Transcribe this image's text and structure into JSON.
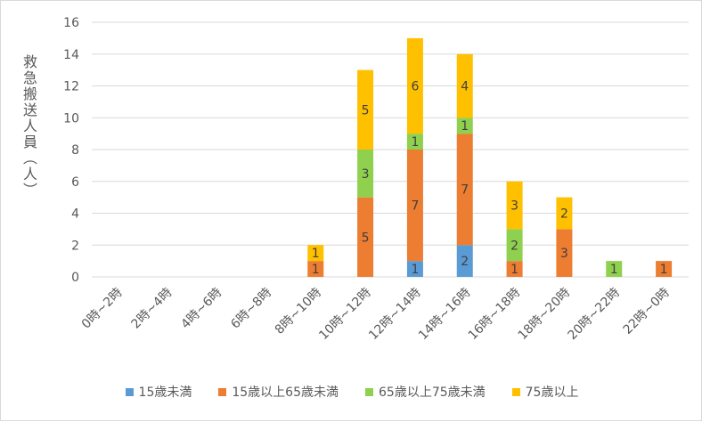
{
  "chart_data": {
    "type": "bar",
    "stacked": true,
    "ylabel": "救急搬送人員（人）",
    "ylim": [
      0,
      16
    ],
    "yticks": [
      0,
      2,
      4,
      6,
      8,
      10,
      12,
      14,
      16
    ],
    "grid": true,
    "legend_position": "bottom",
    "categories": [
      "0時~2時",
      "2時~4時",
      "4時~6時",
      "6時~8時",
      "8時~10時",
      "10時~12時",
      "12時~14時",
      "14時~16時",
      "16時~18時",
      "18時~20時",
      "20時~22時",
      "22時~0時"
    ],
    "series": [
      {
        "name": "15歳未満",
        "color": "#5b9bd5",
        "values": [
          0,
          0,
          0,
          0,
          0,
          0,
          1,
          2,
          0,
          0,
          0,
          0
        ]
      },
      {
        "name": "15歳以上65歳未満",
        "color": "#ed7d31",
        "values": [
          0,
          0,
          0,
          0,
          1,
          5,
          7,
          7,
          1,
          3,
          0,
          1
        ]
      },
      {
        "name": "65歳以上75歳未満",
        "color": "#8fd14f",
        "values": [
          0,
          0,
          0,
          0,
          0,
          3,
          1,
          1,
          2,
          0,
          1,
          0
        ]
      },
      {
        "name": "75歳以上",
        "color": "#ffc000",
        "values": [
          0,
          0,
          0,
          0,
          1,
          5,
          6,
          4,
          3,
          2,
          0,
          0
        ]
      }
    ]
  }
}
